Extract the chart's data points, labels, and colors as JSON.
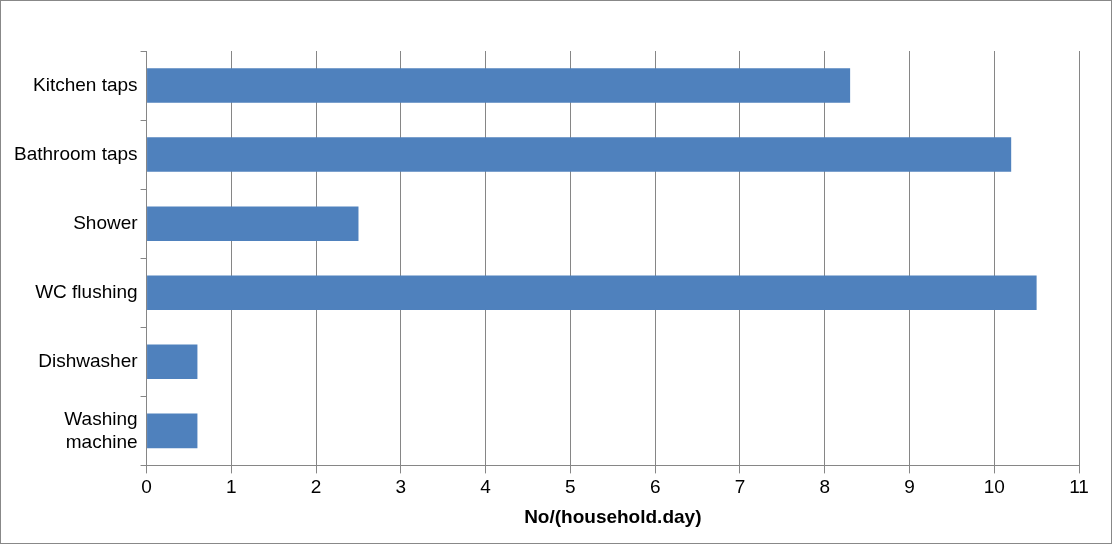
{
  "chart_data": {
    "type": "bar",
    "orientation": "horizontal",
    "xlabel": "No/(household.day)",
    "categories": [
      "Kitchen taps",
      "Bathroom taps",
      "Shower",
      "WC flushing",
      "Dishwasher",
      "Washing machine"
    ],
    "values": [
      8.3,
      10.2,
      2.5,
      10.5,
      0.6,
      0.6
    ],
    "color": "#4f81bd",
    "xlim": [
      0,
      11
    ],
    "xticks": [
      0,
      1,
      2,
      3,
      4,
      5,
      6,
      7,
      8,
      9,
      10,
      11
    ],
    "grid": "x",
    "legend": false
  }
}
